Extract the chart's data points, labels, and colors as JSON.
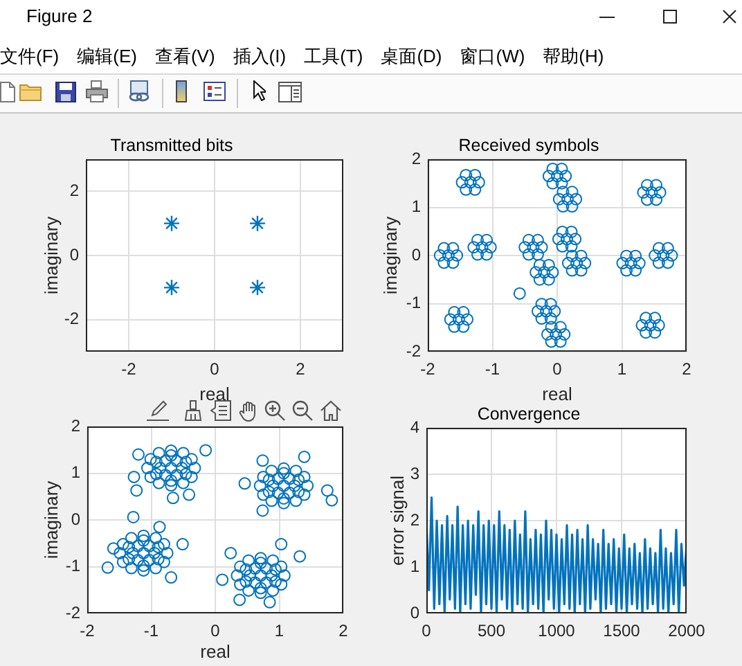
{
  "chart_data": [
    {
      "type": "other",
      "title": "Figure 2",
      "annotations": [
        "文件(F)",
        "编辑(E)",
        "查看(V)",
        "插入(I)",
        "工具(T)",
        "桌面(D)",
        "窗口(W)",
        "帮助(H)"
      ]
    },
    {
      "type": "scatter",
      "title": "Transmitted bits",
      "xlabel": "real",
      "ylabel": "imaginary",
      "x": [
        -1,
        1,
        -1,
        1
      ],
      "values": [
        1,
        1,
        -1,
        -1
      ],
      "color": "#0072bd",
      "marker": "cross",
      "xlim": [
        -3,
        3
      ],
      "xticks": [
        -2,
        0,
        2
      ],
      "ylim": [
        -3,
        3
      ],
      "yticks": [
        -2,
        0,
        2
      ],
      "grid": true
    },
    {
      "type": "scatter",
      "title": "Received symbols",
      "xlabel": "real",
      "ylabel": "imaginary",
      "color": "#0072bd",
      "marker": "circle",
      "x": [
        -1.34,
        -1.21,
        -1.27,
        -1.41,
        -1.47,
        -1.41,
        -1.27,
        0,
        0.13,
        0.07,
        -0.07,
        -0.13,
        -0.07,
        0.07,
        0.16,
        0.29,
        0.23,
        0.09,
        0.03,
        0.09,
        0.23,
        1.46,
        1.59,
        1.53,
        1.39,
        1.33,
        1.39,
        1.53,
        -1.68,
        -1.55,
        -1.61,
        -1.75,
        -1.81,
        -1.75,
        -1.61,
        -1.16,
        -1.03,
        -1.09,
        -1.23,
        -1.29,
        -1.23,
        -1.09,
        -0.37,
        -0.24,
        -0.3,
        -0.44,
        -0.5,
        -0.44,
        -0.3,
        0.15,
        0.28,
        0.22,
        0.08,
        0.02,
        0.08,
        0.22,
        0.3,
        0.43,
        0.37,
        0.23,
        0.17,
        0.23,
        0.37,
        -0.2,
        -0.07,
        -0.13,
        -0.27,
        -0.33,
        -0.27,
        -0.13,
        1.14,
        1.27,
        1.21,
        1.07,
        1.01,
        1.07,
        1.21,
        1.64,
        1.77,
        1.71,
        1.57,
        1.51,
        1.57,
        1.71,
        -1.52,
        -1.39,
        -1.45,
        -1.59,
        -1.65,
        -1.59,
        -1.45,
        -0.17,
        -0.04,
        -0.1,
        -0.24,
        -0.3,
        -0.24,
        -0.1,
        -0.02,
        0.11,
        0.05,
        -0.09,
        -0.15,
        -0.09,
        0.05,
        1.44,
        1.57,
        1.51,
        1.37,
        1.31,
        1.37,
        1.51,
        -0.58
      ],
      "values": [
        1.52,
        1.52,
        1.67,
        1.67,
        1.52,
        1.37,
        1.37,
        1.65,
        1.65,
        1.8,
        1.8,
        1.65,
        1.5,
        1.5,
        1.17,
        1.17,
        1.32,
        1.32,
        1.17,
        1.02,
        1.02,
        1.31,
        1.31,
        1.46,
        1.46,
        1.31,
        1.16,
        1.16,
        0,
        0,
        0.15,
        0.15,
        0,
        -0.15,
        -0.15,
        0.17,
        0.17,
        0.32,
        0.32,
        0.17,
        0.02,
        0.02,
        0.17,
        0.17,
        0.32,
        0.32,
        0.17,
        0.02,
        0.02,
        0.34,
        0.34,
        0.49,
        0.49,
        0.34,
        0.19,
        0.19,
        -0.16,
        -0.16,
        -0.01,
        -0.01,
        -0.16,
        -0.31,
        -0.31,
        -0.35,
        -0.35,
        -0.2,
        -0.2,
        -0.35,
        -0.5,
        -0.5,
        -0.16,
        -0.16,
        -0.01,
        -0.01,
        -0.16,
        -0.31,
        -0.31,
        0,
        0,
        0.15,
        0.15,
        0,
        -0.15,
        -0.15,
        -1.33,
        -1.33,
        -1.18,
        -1.18,
        -1.33,
        -1.48,
        -1.48,
        -1.16,
        -1.16,
        -1.01,
        -1.01,
        -1.16,
        -1.31,
        -1.31,
        -1.64,
        -1.64,
        -1.49,
        -1.49,
        -1.64,
        -1.79,
        -1.79,
        -1.45,
        -1.45,
        -1.3,
        -1.3,
        -1.45,
        -1.6,
        -1.6,
        -0.79
      ],
      "xlim": [
        -2,
        2
      ],
      "xticks": [
        -2,
        -1,
        0,
        1,
        2
      ],
      "ylim": [
        -2,
        2
      ],
      "yticks": [
        -2,
        -1,
        0,
        1,
        2
      ],
      "grid": true
    },
    {
      "type": "scatter",
      "xlabel": "real",
      "ylabel": "imaginary",
      "color": "#0072bd",
      "marker": "circle",
      "x": [
        -0.69,
        -0.52,
        -0.6,
        -0.78,
        -0.86,
        -0.78,
        -0.6,
        -0.32,
        -0.37,
        -0.5,
        -0.69,
        -0.88,
        -1.01,
        -1.06,
        -1.01,
        -0.88,
        -0.69,
        -0.5,
        -0.37,
        -1.23,
        -0.15,
        -0.66,
        -0.41,
        -1.2,
        -1.27,
        1.07,
        1.24,
        1.16,
        0.98,
        0.9,
        0.98,
        1.16,
        1.44,
        1.39,
        1.26,
        1.07,
        0.88,
        0.75,
        0.7,
        0.75,
        0.88,
        1.07,
        1.26,
        1.39,
        1.82,
        1.75,
        0.46,
        0.74,
        1.39,
        0.74,
        -1.12,
        -0.95,
        -1.03,
        -1.21,
        -1.29,
        -1.21,
        -1.03,
        -0.75,
        -0.8,
        -0.93,
        -1.12,
        -1.31,
        -1.44,
        -1.49,
        -1.44,
        -1.31,
        -1.12,
        -0.93,
        -0.8,
        -1.28,
        -1.68,
        -0.87,
        -0.51,
        -0.69,
        -1.59,
        0.71,
        0.88,
        0.8,
        0.62,
        0.54,
        0.62,
        0.8,
        1.08,
        1.03,
        0.9,
        0.71,
        0.52,
        0.39,
        0.34,
        0.39,
        0.52,
        0.71,
        0.9,
        1.03,
        0.11,
        0.38,
        0.85,
        1.32,
        1.03,
        0.24,
        -0.46,
        -0.69,
        -0.92,
        -0.92,
        -0.69,
        -0.46,
        1.3,
        1.07,
        0.84,
        0.84,
        1.07,
        1.3,
        -0.89,
        -1.12,
        -1.35,
        -1.35,
        -1.12,
        -0.89,
        0.94,
        0.71,
        0.48,
        0.48,
        0.71,
        0.94
      ],
      "values": [
        1.11,
        1.11,
        1.26,
        1.26,
        1.11,
        0.96,
        0.96,
        1.11,
        1.3,
        1.43,
        1.48,
        1.43,
        1.3,
        1.11,
        0.92,
        0.79,
        0.74,
        0.79,
        0.92,
        0.63,
        1.49,
        0.47,
        0.54,
        1.4,
        0.92,
        0.73,
        0.73,
        0.88,
        0.88,
        0.73,
        0.58,
        0.58,
        0.73,
        0.92,
        1.05,
        1.1,
        1.05,
        0.92,
        0.73,
        0.54,
        0.41,
        0.36,
        0.41,
        0.54,
        0.42,
        0.63,
        0.78,
        1.27,
        1.35,
        0.2,
        -0.71,
        -0.71,
        -0.56,
        -0.56,
        -0.71,
        -0.86,
        -0.86,
        -0.71,
        -0.52,
        -0.39,
        -0.34,
        -0.39,
        -0.52,
        -0.71,
        -0.9,
        -1.03,
        -1.08,
        -1.03,
        -0.9,
        0.06,
        -1.02,
        -0.15,
        -0.52,
        -1.23,
        -0.61,
        -1.19,
        -1.19,
        -1.04,
        -1.04,
        -1.19,
        -1.34,
        -1.34,
        -1.19,
        -1,
        -0.87,
        -0.82,
        -0.87,
        -1,
        -1.19,
        -1.38,
        -1.51,
        -1.56,
        -1.51,
        -1.38,
        -1.28,
        -1.71,
        -1.76,
        -0.78,
        -0.52,
        -0.71,
        1.24,
        1.38,
        1.24,
        0.98,
        0.84,
        0.98,
        0.86,
        1.0,
        0.86,
        0.6,
        0.46,
        0.6,
        -0.58,
        -0.44,
        -0.58,
        -0.84,
        -0.98,
        -0.84,
        -1.06,
        -0.92,
        -1.06,
        -1.32,
        -1.46,
        -1.32
      ],
      "xlim": [
        -2,
        2
      ],
      "xticks": [
        -2,
        -1,
        0,
        1,
        2
      ],
      "ylim": [
        -2,
        2
      ],
      "yticks": [
        -2,
        -1,
        0,
        1,
        2
      ],
      "grid": true
    },
    {
      "type": "line",
      "title": "Convergence",
      "ylabel": "error signal",
      "color": "#0072bd",
      "x": [
        0,
        20,
        40,
        60,
        80,
        100,
        120,
        140,
        160,
        180,
        200,
        220,
        240,
        260,
        280,
        300,
        320,
        340,
        360,
        380,
        400,
        420,
        440,
        460,
        480,
        500,
        520,
        540,
        560,
        580,
        600,
        620,
        640,
        660,
        680,
        700,
        720,
        740,
        760,
        780,
        800,
        820,
        840,
        860,
        880,
        900,
        920,
        940,
        960,
        980,
        1000,
        1020,
        1040,
        1060,
        1080,
        1100,
        1120,
        1140,
        1160,
        1180,
        1200,
        1220,
        1240,
        1260,
        1280,
        1300,
        1320,
        1340,
        1360,
        1380,
        1400,
        1420,
        1440,
        1460,
        1480,
        1500,
        1520,
        1540,
        1560,
        1580,
        1600,
        1620,
        1640,
        1660,
        1680,
        1700,
        1720,
        1740,
        1760,
        1780,
        1800,
        1820,
        1840,
        1860,
        1880,
        1900,
        1920,
        1940,
        1960,
        1980,
        2000
      ],
      "values": [
        2.0,
        0.5,
        2.5,
        0.1,
        2.0,
        0.2,
        1.9,
        0,
        2.1,
        0.3,
        1.9,
        0.1,
        2.3,
        0,
        1.9,
        0.2,
        2.0,
        0.1,
        1.9,
        0.4,
        2.2,
        0,
        1.9,
        0.2,
        2.0,
        0.1,
        1.9,
        0,
        2.2,
        0.3,
        1.9,
        0.1,
        1.8,
        0,
        2.0,
        0.2,
        1.7,
        0.1,
        2.2,
        0,
        1.6,
        0.2,
        1.8,
        0.1,
        1.7,
        0,
        2.0,
        0.3,
        1.8,
        0.1,
        1.7,
        0,
        1.6,
        0.2,
        1.9,
        0.1,
        1.7,
        0,
        1.8,
        0.2,
        1.6,
        0,
        1.9,
        0.1,
        1.6,
        0.3,
        1.5,
        0,
        1.8,
        0.1,
        1.5,
        0.2,
        1.6,
        0,
        1.4,
        0.1,
        1.7,
        0,
        1.4,
        0.2,
        1.5,
        0.1,
        1.3,
        0,
        1.6,
        0.1,
        1.4,
        0.2,
        1.3,
        0,
        1.8,
        0.1,
        1.4,
        0,
        1.3,
        0.2,
        1.8,
        0,
        1.5,
        0.6,
        1.5
      ],
      "xlim": [
        0,
        2000
      ],
      "xticks": [
        0,
        500,
        1000,
        1500,
        2000
      ],
      "ylim": [
        0,
        4
      ],
      "yticks": [
        0,
        1,
        2,
        3,
        4
      ],
      "grid": true
    }
  ]
}
